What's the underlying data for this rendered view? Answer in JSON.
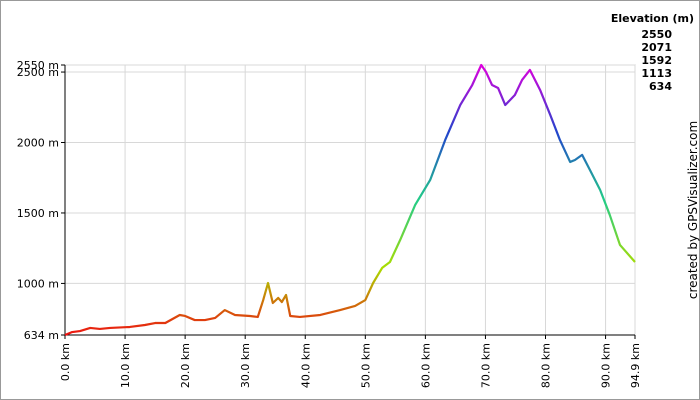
{
  "chart_data": {
    "type": "line",
    "credit": "created by GPSVisualizer.com",
    "legend": {
      "title": "Elevation (m)",
      "values": [
        2550,
        2071,
        1592,
        1113,
        634
      ],
      "colors": [
        "#dd00dd",
        "#2244cc",
        "#22cc88",
        "#aadd00",
        "#ee1111"
      ]
    },
    "xlim": [
      0,
      94.9
    ],
    "ylim": [
      634,
      2550
    ],
    "xticks": [
      {
        "value": 0,
        "label": "0.0 km"
      },
      {
        "value": 10,
        "label": "10.0 km"
      },
      {
        "value": 20,
        "label": "20.0 km"
      },
      {
        "value": 30,
        "label": "30.0 km"
      },
      {
        "value": 40,
        "label": "40.0 km"
      },
      {
        "value": 50,
        "label": "50.0 km"
      },
      {
        "value": 60,
        "label": "60.0 km"
      },
      {
        "value": 70,
        "label": "70.0 km"
      },
      {
        "value": 80,
        "label": "80.0 km"
      },
      {
        "value": 90,
        "label": "90.0 km"
      },
      {
        "value": 94.9,
        "label": "94.9 km"
      }
    ],
    "yticks": [
      {
        "value": 634,
        "label": "634 m"
      },
      {
        "value": 1000,
        "label": "1000 m"
      },
      {
        "value": 1500,
        "label": "1500 m"
      },
      {
        "value": 2000,
        "label": "2000 m"
      },
      {
        "value": 2500,
        "label": "2500 m"
      },
      {
        "value": 2550,
        "label": "2550 m"
      }
    ],
    "grid": true,
    "x": [
      0,
      1.2,
      2.5,
      4.2,
      5.8,
      7.5,
      10.8,
      13.3,
      15,
      16.7,
      19.1,
      20,
      21.6,
      23.3,
      25,
      26.6,
      28.3,
      30.8,
      32.1,
      33,
      33.8,
      34.6,
      35.5,
      36.1,
      36.8,
      37.5,
      39.1,
      42.5,
      45.8,
      48.3,
      50,
      51.3,
      52.8,
      54.1,
      55.8,
      58.3,
      60.8,
      63.3,
      65.8,
      67.8,
      69.3,
      70.1,
      71.1,
      72.1,
      73.3,
      74.9,
      76.1,
      77.4,
      79.1,
      80.8,
      82.4,
      84.1,
      84.9,
      86.1,
      87.4,
      89.1,
      90.7,
      92.4,
      94.9
    ],
    "values": [
      634,
      655,
      662,
      684,
      677,
      684,
      691,
      705,
      719,
      719,
      776,
      769,
      740,
      740,
      755,
      811,
      776,
      769,
      762,
      882,
      1003,
      861,
      897,
      868,
      918,
      769,
      762,
      776,
      811,
      840,
      882,
      1003,
      1110,
      1152,
      1308,
      1557,
      1734,
      2018,
      2266,
      2408,
      2550,
      2500,
      2408,
      2387,
      2266,
      2337,
      2444,
      2515,
      2373,
      2195,
      2018,
      1862,
      1876,
      1912,
      1805,
      1663,
      1486,
      1273,
      1152
    ]
  }
}
